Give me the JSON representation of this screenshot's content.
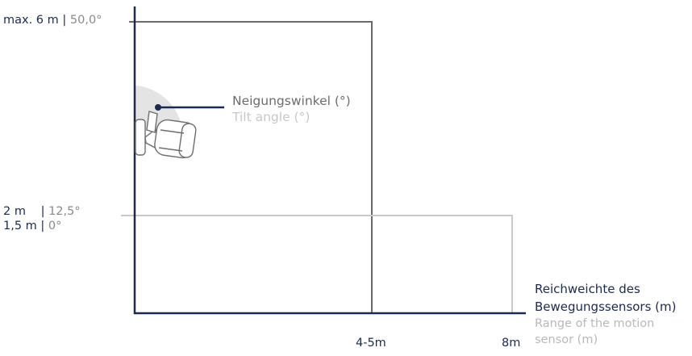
{
  "diagram": {
    "labels": {
      "max_height": "max. 6 m",
      "max_angle": "50,0°",
      "h2": "2 m",
      "a2": "12,5°",
      "h15": "1,5 m",
      "a15": "0°",
      "sep": "|"
    },
    "tilt": {
      "title_de": "Neigungswinkel (°)",
      "title_en": "Tilt angle (°)"
    },
    "x_axis": {
      "title_de_line1": "Reichweichte des",
      "title_de_line2": "Bewegungssensors (m)",
      "title_en_line1": "Range of the motion",
      "title_en_line2": "sensor (m)",
      "tick1": "4-5m",
      "tick2": "8m"
    },
    "colors": {
      "navy": "#1d2a4d",
      "dark_grey": "#6b6b6b",
      "light_grey": "#c9c9c9",
      "cone": "#e4e4e4"
    }
  }
}
